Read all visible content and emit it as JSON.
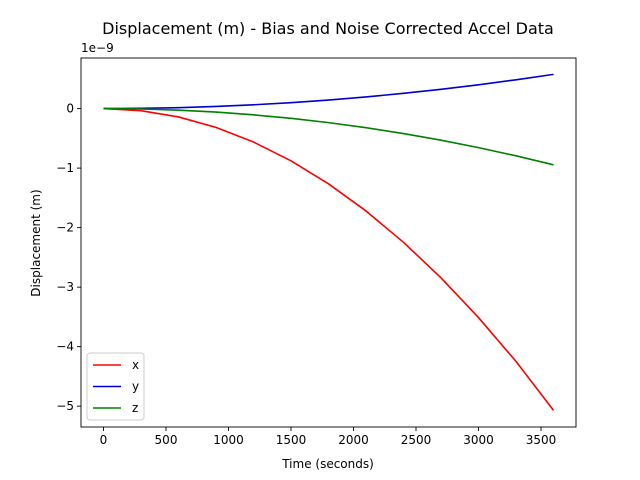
{
  "chart_data": {
    "type": "line",
    "title": "Displacement (m) - Bias and Noise Corrected Accel Data",
    "xlabel": "Time (seconds)",
    "ylabel": "Displacement (m)",
    "y_offset_label": "1e−9",
    "xlim": [
      -180,
      3780
    ],
    "ylim": [
      -5.35,
      0.85
    ],
    "x_ticks": [
      0,
      500,
      1000,
      1500,
      2000,
      2500,
      3000,
      3500
    ],
    "x_tick_labels": [
      "0",
      "500",
      "1000",
      "1500",
      "2000",
      "2500",
      "3000",
      "3500"
    ],
    "y_ticks": [
      0,
      -1,
      -2,
      -3,
      -4,
      -5
    ],
    "y_tick_labels": [
      "0",
      "−1",
      "−2",
      "−3",
      "−4",
      "−5"
    ],
    "grid": false,
    "legend_position": "lower-left",
    "x": [
      0,
      300,
      600,
      900,
      1200,
      1500,
      1800,
      2100,
      2400,
      2700,
      3000,
      3300,
      3600
    ],
    "series": [
      {
        "name": "x",
        "color": "#ff0000",
        "values": [
          0,
          -0.035,
          -0.14,
          -0.316,
          -0.562,
          -0.878,
          -1.264,
          -1.72,
          -2.247,
          -2.844,
          -3.511,
          -4.248,
          -5.07
        ]
      },
      {
        "name": "y",
        "color": "#0000cc",
        "values": [
          0,
          0.004,
          0.016,
          0.036,
          0.064,
          0.1,
          0.144,
          0.196,
          0.256,
          0.324,
          0.4,
          0.484,
          0.575
        ]
      },
      {
        "name": "z",
        "color": "#008000",
        "values": [
          0,
          -0.007,
          -0.026,
          -0.059,
          -0.105,
          -0.164,
          -0.236,
          -0.321,
          -0.42,
          -0.531,
          -0.656,
          -0.794,
          -0.945
        ]
      }
    ]
  }
}
